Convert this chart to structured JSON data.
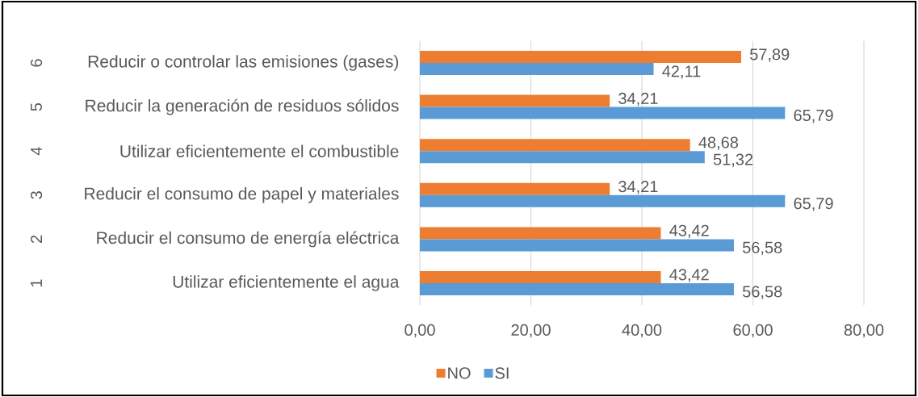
{
  "chart_data": {
    "type": "bar",
    "orientation": "horizontal",
    "categories": [
      "Reducir o controlar las emisiones (gases)",
      "Reducir la generación de residuos sólidos",
      "Utilizar eficientemente el combustible",
      "Reducir el consumo de papel y materiales",
      "Reducir el consumo de energía eléctrica",
      "Utilizar eficientemente el agua"
    ],
    "series": [
      {
        "name": "NO",
        "color": "#ed7d31",
        "values": [
          57.89,
          34.21,
          48.68,
          34.21,
          43.42,
          43.42
        ],
        "value_labels": [
          "57,89",
          "34,21",
          "48,68",
          "34,21",
          "43,42",
          "43,42"
        ]
      },
      {
        "name": "SI",
        "color": "#5b9bd5",
        "values": [
          42.11,
          65.79,
          51.32,
          65.79,
          56.58,
          56.58
        ],
        "value_labels": [
          "42,11",
          "65,79",
          "51,32",
          "65,79",
          "56,58",
          "56,58"
        ]
      }
    ],
    "xlim": [
      0,
      80
    ],
    "xticks": [
      {
        "value": 0,
        "label": "0,00"
      },
      {
        "value": 20,
        "label": "20,00"
      },
      {
        "value": 40,
        "label": "40,00"
      },
      {
        "value": 60,
        "label": "60,00"
      },
      {
        "value": 80,
        "label": "80,00"
      }
    ],
    "annotations": [
      "6",
      "5",
      "4",
      "3",
      "2",
      "1"
    ],
    "grid": "x",
    "legend": "bottom"
  }
}
